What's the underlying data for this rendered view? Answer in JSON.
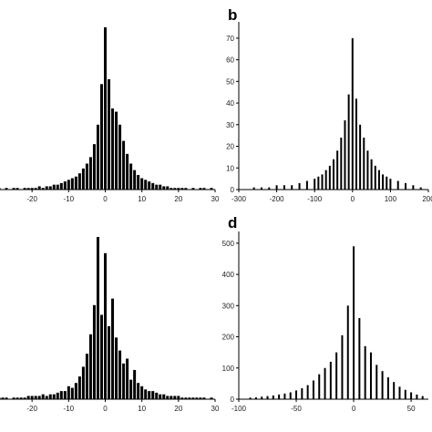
{
  "chart_data": [
    {
      "panel_label": "",
      "type": "bar",
      "xlim": [
        -30,
        30
      ],
      "ylim": [
        0,
        100
      ],
      "x_ticks": [
        -20,
        -10,
        0,
        10,
        20,
        30
      ],
      "x_tick_labels": [
        "-20",
        "-10",
        "0",
        "10",
        "20",
        "30"
      ],
      "y_tick_labels": [],
      "grid": false,
      "x": [
        -30,
        -29,
        -28,
        -27,
        -26,
        -25,
        -24,
        -23,
        -22,
        -21,
        -20,
        -19,
        -18,
        -17,
        -16,
        -15,
        -14,
        -13,
        -12,
        -11,
        -10,
        -9,
        -8,
        -7,
        -6,
        -5,
        -4,
        -3,
        -2,
        -1,
        0,
        1,
        2,
        3,
        4,
        5,
        6,
        7,
        8,
        9,
        10,
        11,
        12,
        13,
        14,
        15,
        16,
        17,
        18,
        19,
        20,
        21,
        22,
        23,
        24,
        25,
        26,
        27,
        28,
        29,
        30
      ],
      "values": [
        0,
        1,
        0,
        1,
        0,
        1,
        1,
        0,
        1,
        1,
        1,
        1,
        2,
        1,
        2,
        2,
        3,
        3,
        4,
        5,
        6,
        7,
        8,
        10,
        13,
        16,
        20,
        28,
        40,
        65,
        100,
        68,
        50,
        48,
        40,
        30,
        22,
        16,
        12,
        9,
        7,
        6,
        5,
        4,
        3,
        3,
        2,
        2,
        1,
        1,
        1,
        1,
        1,
        0,
        1,
        0,
        1,
        1,
        0,
        1,
        0
      ]
    },
    {
      "panel_label": "b",
      "type": "bar",
      "xlim": [
        -300,
        200
      ],
      "ylim": [
        0,
        75
      ],
      "x_ticks": [
        -300,
        -200,
        -100,
        0,
        100,
        200
      ],
      "x_tick_labels": [
        "-300",
        "-200",
        "-100",
        "0",
        "100",
        "200"
      ],
      "y_ticks": [
        0,
        10,
        20,
        30,
        40,
        50,
        60,
        70
      ],
      "y_tick_labels": [
        "0",
        "10",
        "20",
        "30",
        "40",
        "50",
        "60",
        "70"
      ],
      "grid": false,
      "x": [
        -300,
        -280,
        -260,
        -240,
        -220,
        -200,
        -180,
        -160,
        -140,
        -120,
        -100,
        -90,
        -80,
        -70,
        -60,
        -50,
        -40,
        -30,
        -20,
        -10,
        0,
        10,
        20,
        30,
        40,
        50,
        60,
        70,
        80,
        90,
        100,
        120,
        140,
        160,
        180,
        200
      ],
      "values": [
        0,
        0,
        1,
        1,
        1,
        2,
        2,
        2,
        3,
        4,
        5,
        6,
        7,
        9,
        11,
        14,
        18,
        24,
        32,
        44,
        70,
        42,
        30,
        24,
        18,
        14,
        11,
        9,
        7,
        6,
        5,
        4,
        3,
        2,
        1,
        0
      ]
    },
    {
      "panel_label": "",
      "type": "bar",
      "xlim": [
        -30,
        30
      ],
      "ylim": [
        0,
        100
      ],
      "x_ticks": [
        -20,
        -10,
        0,
        10,
        20,
        30
      ],
      "x_tick_labels": [
        "-20",
        "-10",
        "0",
        "10",
        "20",
        "30"
      ],
      "y_tick_labels": [],
      "grid": false,
      "x": [
        -30,
        -29,
        -28,
        -27,
        -26,
        -25,
        -24,
        -23,
        -22,
        -21,
        -20,
        -19,
        -18,
        -17,
        -16,
        -15,
        -14,
        -13,
        -12,
        -11,
        -10,
        -9,
        -8,
        -7,
        -6,
        -5,
        -4,
        -3,
        -2,
        -1,
        0,
        1,
        2,
        3,
        4,
        5,
        6,
        7,
        8,
        9,
        10,
        11,
        12,
        13,
        14,
        15,
        16,
        17,
        18,
        19,
        20,
        21,
        22,
        23,
        24,
        25,
        26,
        27,
        28,
        29,
        30
      ],
      "values": [
        0,
        1,
        1,
        1,
        0,
        1,
        1,
        1,
        1,
        2,
        2,
        2,
        2,
        3,
        2,
        3,
        3,
        4,
        5,
        5,
        8,
        7,
        10,
        14,
        20,
        28,
        40,
        58,
        100,
        52,
        90,
        45,
        62,
        38,
        30,
        22,
        25,
        12,
        18,
        10,
        8,
        6,
        5,
        5,
        4,
        3,
        3,
        2,
        2,
        2,
        2,
        1,
        1,
        1,
        1,
        1,
        1,
        1,
        0,
        1,
        0
      ]
    },
    {
      "panel_label": "d",
      "type": "bar",
      "xlim": [
        -100,
        65
      ],
      "ylim": [
        0,
        520
      ],
      "x_ticks": [
        -100,
        -50,
        0,
        50
      ],
      "x_tick_labels": [
        "-100",
        "-50",
        "0",
        "50"
      ],
      "y_ticks": [
        0,
        100,
        200,
        300,
        400,
        500
      ],
      "y_tick_labels": [
        "0",
        "100",
        "200",
        "300",
        "400",
        "500"
      ],
      "grid": false,
      "x": [
        -90,
        -85,
        -80,
        -75,
        -70,
        -65,
        -60,
        -55,
        -50,
        -45,
        -40,
        -35,
        -30,
        -25,
        -20,
        -15,
        -10,
        -5,
        0,
        5,
        10,
        15,
        20,
        25,
        30,
        35,
        40,
        45,
        50,
        55,
        60
      ],
      "values": [
        5,
        6,
        8,
        10,
        12,
        15,
        18,
        22,
        28,
        35,
        45,
        60,
        80,
        100,
        120,
        150,
        205,
        300,
        490,
        260,
        170,
        150,
        110,
        90,
        70,
        55,
        40,
        30,
        22,
        15,
        10
      ]
    }
  ]
}
